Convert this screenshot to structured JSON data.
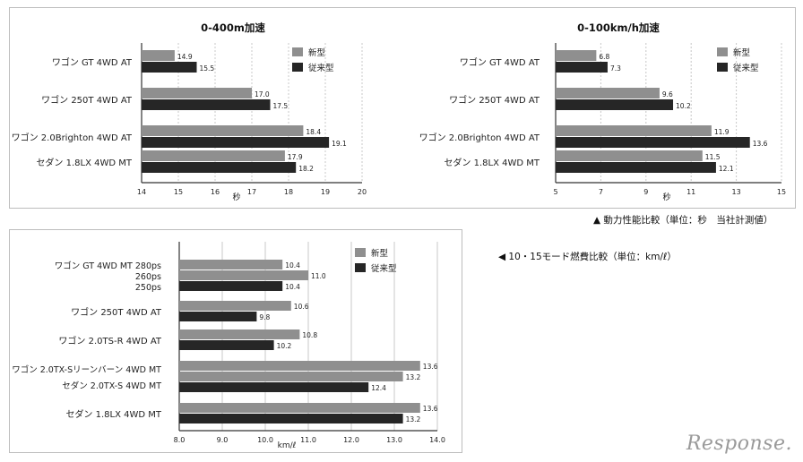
{
  "colors": {
    "new": "#8f8f8f",
    "old": "#262626",
    "grid": "#c8c8c8",
    "axis": "#333333",
    "text": "#222222"
  },
  "captions": {
    "performance": "▲ 動力性能比較（単位：秒　当社計測値）",
    "fuel": "◀ 10・15モード燃費比較（単位：km/ℓ）"
  },
  "logo": "Response.",
  "chart_data": [
    {
      "type": "bar",
      "orientation": "horizontal",
      "title": "0-400m加速",
      "xlabel": "秒",
      "xlim": [
        14,
        20
      ],
      "xticks": [
        "14",
        "15",
        "16",
        "17",
        "18",
        "19",
        "20"
      ],
      "legend": [
        "新型",
        "従来型"
      ],
      "legend_position": "top-right",
      "grid": true,
      "groups": [
        {
          "label": [
            "ワゴン GT 4WD AT"
          ],
          "bars": [
            {
              "series": "新型",
              "value": 14.9,
              "label": "14.9"
            },
            {
              "series": "従来型",
              "value": 15.5,
              "label": "15.5"
            }
          ]
        },
        {
          "label": [
            "ワゴン 250T 4WD AT"
          ],
          "bars": [
            {
              "series": "新型",
              "value": 17.0,
              "label": "17.0"
            },
            {
              "series": "従来型",
              "value": 17.5,
              "label": "17.5"
            }
          ]
        },
        {
          "label": [
            "ワゴン 2.0Brighton 4WD AT"
          ],
          "bars": [
            {
              "series": "新型",
              "value": 18.4,
              "label": "18.4"
            },
            {
              "series": "従来型",
              "value": 19.1,
              "label": "19.1"
            }
          ]
        },
        {
          "label": [
            "セダン 1.8LX 4WD MT"
          ],
          "bars": [
            {
              "series": "新型",
              "value": 17.9,
              "label": "17.9"
            },
            {
              "series": "従来型",
              "value": 18.2,
              "label": "18.2"
            }
          ]
        }
      ]
    },
    {
      "type": "bar",
      "orientation": "horizontal",
      "title": "0-100km/h加速",
      "xlabel": "秒",
      "xlim": [
        5,
        15
      ],
      "xticks": [
        "5",
        "7",
        "9",
        "11",
        "13",
        "15"
      ],
      "legend": [
        "新型",
        "従来型"
      ],
      "legend_position": "top-right",
      "grid": true,
      "groups": [
        {
          "label": [
            "ワゴン GT 4WD AT"
          ],
          "bars": [
            {
              "series": "新型",
              "value": 6.8,
              "label": "6.8"
            },
            {
              "series": "従来型",
              "value": 7.3,
              "label": "7.3"
            }
          ]
        },
        {
          "label": [
            "ワゴン 250T 4WD AT"
          ],
          "bars": [
            {
              "series": "新型",
              "value": 9.6,
              "label": "9.6"
            },
            {
              "series": "従来型",
              "value": 10.2,
              "label": "10.2"
            }
          ]
        },
        {
          "label": [
            "ワゴン 2.0Brighton 4WD AT"
          ],
          "bars": [
            {
              "series": "新型",
              "value": 11.9,
              "label": "11.9"
            },
            {
              "series": "従来型",
              "value": 13.6,
              "label": "13.6"
            }
          ]
        },
        {
          "label": [
            "セダン 1.8LX 4WD MT"
          ],
          "bars": [
            {
              "series": "新型",
              "value": 11.5,
              "label": "11.5"
            },
            {
              "series": "従来型",
              "value": 12.1,
              "label": "12.1"
            }
          ]
        }
      ]
    },
    {
      "type": "bar",
      "orientation": "horizontal",
      "title": "",
      "xlabel": "km/ℓ",
      "xlim": [
        8,
        14
      ],
      "xticks": [
        "8.0",
        "9.0",
        "10.0",
        "11.0",
        "12.0",
        "13.0",
        "14.0"
      ],
      "legend": [
        "新型",
        "従来型"
      ],
      "legend_position": "top-right",
      "grid": true,
      "groups": [
        {
          "label": [
            "ワゴン GT 4WD MT 280ps",
            "260ps",
            "250ps"
          ],
          "bars": [
            {
              "series": "新型",
              "value": 10.4,
              "label": "10.4"
            },
            {
              "series": "新型",
              "value": 11.0,
              "label": "11.0"
            },
            {
              "series": "従来型",
              "value": 10.4,
              "label": "10.4"
            }
          ]
        },
        {
          "label": [
            "ワゴン 250T 4WD AT"
          ],
          "bars": [
            {
              "series": "新型",
              "value": 10.6,
              "label": "10.6"
            },
            {
              "series": "従来型",
              "value": 9.8,
              "label": "9.8"
            }
          ]
        },
        {
          "label": [
            "ワゴン 2.0TS-R 4WD AT"
          ],
          "bars": [
            {
              "series": "新型",
              "value": 10.8,
              "label": "10.8"
            },
            {
              "series": "従来型",
              "value": 10.2,
              "label": "10.2"
            }
          ]
        },
        {
          "label": [
            "ワゴン 2.0TX-Sリーンバーン 4WD MT",
            "セダン 2.0TX-S 4WD MT"
          ],
          "bars": [
            {
              "series": "新型",
              "value": 13.6,
              "label": "13.6"
            },
            {
              "series": "新型",
              "value": 13.2,
              "label": "13.2"
            },
            {
              "series": "従来型",
              "value": 12.4,
              "label": "12.4"
            }
          ]
        },
        {
          "label": [
            "セダン 1.8LX 4WD MT"
          ],
          "bars": [
            {
              "series": "新型",
              "value": 13.6,
              "label": "13.6"
            },
            {
              "series": "従来型",
              "value": 13.2,
              "label": "13.2"
            }
          ]
        }
      ]
    }
  ]
}
